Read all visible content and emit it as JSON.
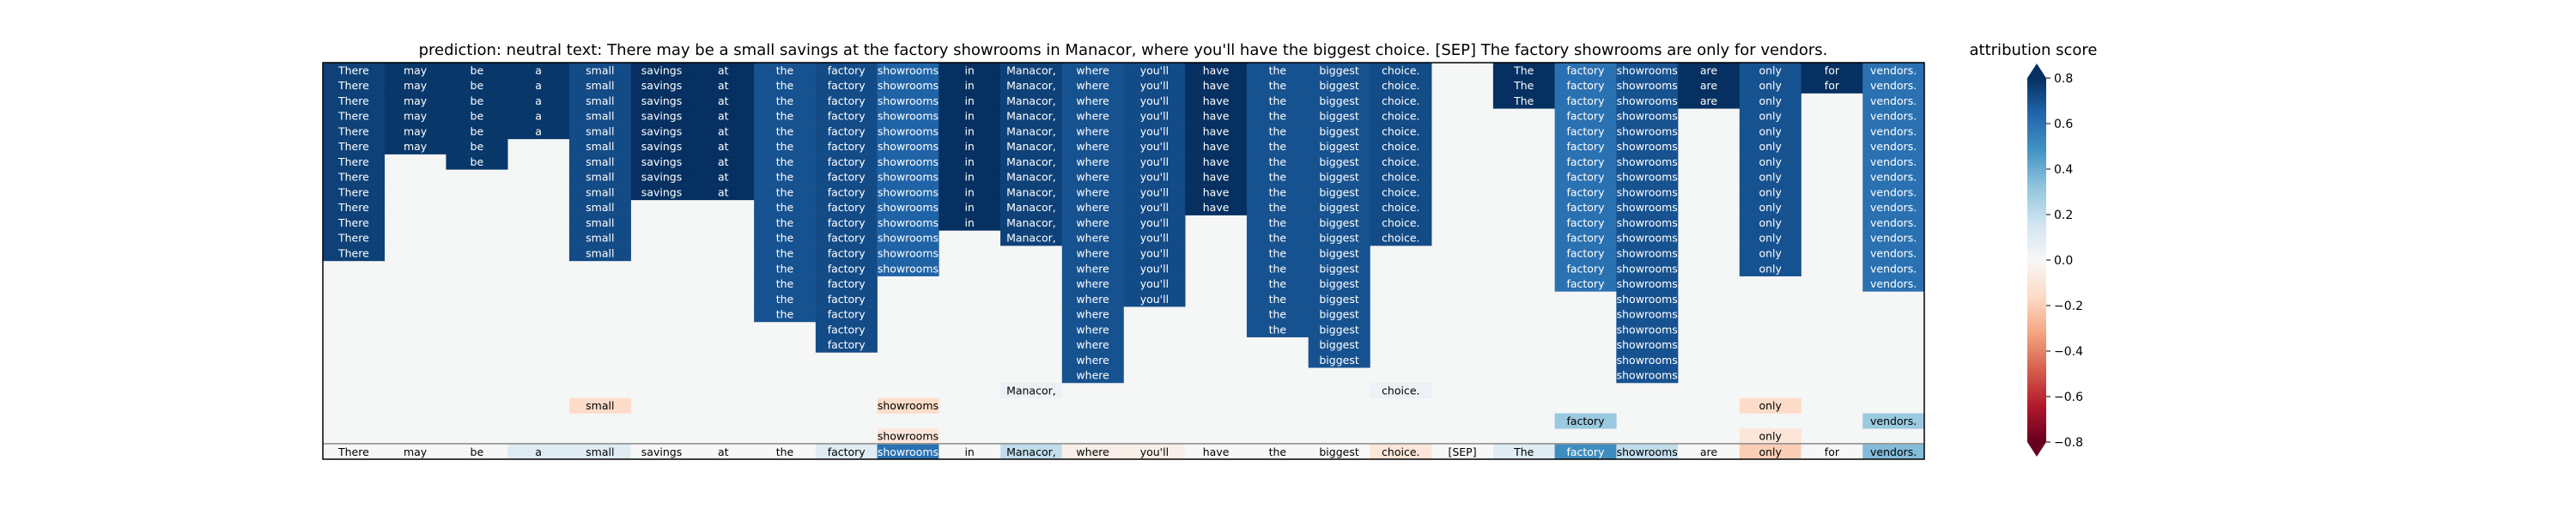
{
  "chart_data": {
    "type": "heatmap",
    "title": "prediction:  neutral     text:  There may be a small savings at the factory showrooms in Manacor, where you'll have the biggest choice. [SEP] The factory showrooms are only for vendors.",
    "colorbar_label": "attribution score",
    "colorbar_range": [
      -0.8,
      0.8
    ],
    "colorbar_ticks": [
      "0.8",
      "0.6",
      "0.4",
      "0.2",
      "0.0",
      "−0.2",
      "−0.4",
      "−0.6",
      "−0.8"
    ],
    "colormap": "RdBu",
    "columns": [
      "There",
      "may",
      "be",
      "a",
      "small",
      "savings",
      "at",
      "the",
      "factory",
      "showrooms",
      "in",
      "Manacor,",
      "where",
      "you'll",
      "have",
      "the",
      "biggest",
      "choice.",
      "[SEP]",
      "The",
      "factory",
      "showrooms",
      "are",
      "only",
      "for",
      "vendors."
    ],
    "bottom_row_values": [
      0.0,
      0.0,
      0.0,
      0.1,
      0.1,
      0.0,
      0.0,
      0.0,
      0.1,
      0.6,
      0.0,
      0.2,
      -0.05,
      -0.05,
      0.0,
      0.0,
      0.0,
      -0.1,
      0.0,
      0.1,
      0.5,
      0.2,
      0.0,
      -0.2,
      0.0,
      0.35
    ],
    "column_runs": [
      [
        {
          "start": 0,
          "length": 13,
          "value": 0.75
        }
      ],
      [
        {
          "start": 0,
          "length": 6,
          "value": 0.78
        }
      ],
      [
        {
          "start": 0,
          "length": 7,
          "value": 0.78
        }
      ],
      [
        {
          "start": 0,
          "length": 5,
          "value": 0.78
        }
      ],
      [
        {
          "start": 0,
          "length": 13,
          "value": 0.72
        },
        {
          "start": 22,
          "length": 1,
          "value": -0.15
        }
      ],
      [
        {
          "start": 0,
          "length": 9,
          "value": 0.8
        }
      ],
      [
        {
          "start": 0,
          "length": 9,
          "value": 0.8
        }
      ],
      [
        {
          "start": 0,
          "length": 17,
          "value": 0.7
        }
      ],
      [
        {
          "start": 0,
          "length": 19,
          "value": 0.72
        }
      ],
      [
        {
          "start": 0,
          "length": 14,
          "value": 0.65
        },
        {
          "start": 22,
          "length": 1,
          "value": -0.15
        },
        {
          "start": 24,
          "length": 1,
          "value": -0.1
        }
      ],
      [
        {
          "start": 0,
          "length": 11,
          "value": 0.8
        }
      ],
      [
        {
          "start": 0,
          "length": 12,
          "value": 0.75
        },
        {
          "start": 21,
          "length": 1,
          "value": 0.05
        }
      ],
      [
        {
          "start": 0,
          "length": 21,
          "value": 0.7
        }
      ],
      [
        {
          "start": 0,
          "length": 16,
          "value": 0.72
        }
      ],
      [
        {
          "start": 0,
          "length": 10,
          "value": 0.8
        }
      ],
      [
        {
          "start": 0,
          "length": 18,
          "value": 0.7
        }
      ],
      [
        {
          "start": 0,
          "length": 20,
          "value": 0.7
        }
      ],
      [
        {
          "start": 0,
          "length": 12,
          "value": 0.72
        },
        {
          "start": 21,
          "length": 1,
          "value": 0.05
        }
      ],
      [],
      [
        {
          "start": 0,
          "length": 3,
          "value": 0.8
        }
      ],
      [
        {
          "start": 0,
          "length": 15,
          "value": 0.6
        },
        {
          "start": 23,
          "length": 1,
          "value": 0.3
        }
      ],
      [
        {
          "start": 0,
          "length": 21,
          "value": 0.7
        }
      ],
      [
        {
          "start": 0,
          "length": 3,
          "value": 0.8
        }
      ],
      [
        {
          "start": 0,
          "length": 14,
          "value": 0.7
        },
        {
          "start": 22,
          "length": 1,
          "value": -0.15
        },
        {
          "start": 24,
          "length": 1,
          "value": -0.1
        }
      ],
      [
        {
          "start": 0,
          "length": 2,
          "value": 0.8
        }
      ],
      [
        {
          "start": 0,
          "length": 15,
          "value": 0.6
        },
        {
          "start": 23,
          "length": 1,
          "value": 0.3
        }
      ]
    ]
  },
  "colors": {
    "background": "#f5f6f6",
    "frame": "#000000",
    "separator": "#7f7f7f"
  }
}
